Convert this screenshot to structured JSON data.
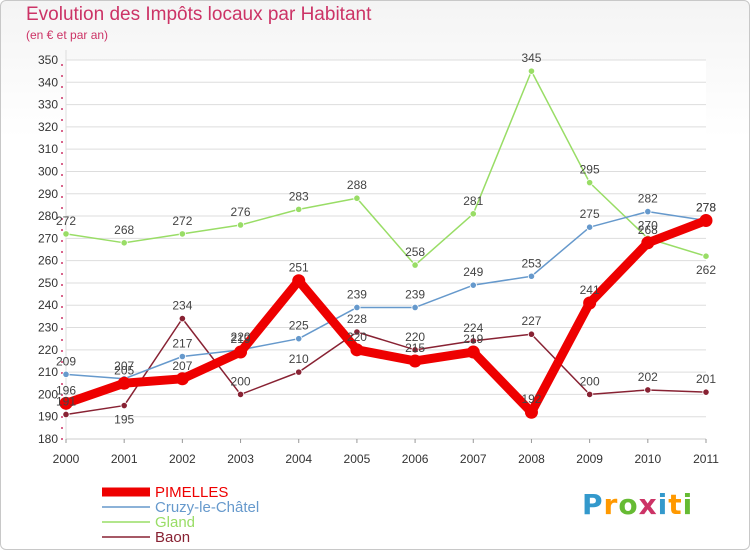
{
  "header": {
    "title": "Evolution des Impôts locaux par Habitant",
    "subtitle": "(en € et par an)"
  },
  "logo": {
    "text": "Proxiti"
  },
  "chart_data": {
    "type": "line",
    "title": "Evolution des Impôts locaux par Habitant",
    "subtitle": "(en € et par an)",
    "x": [
      "2000",
      "2001",
      "2002",
      "2003",
      "2004",
      "2005",
      "2006",
      "2007",
      "2008",
      "2009",
      "2010",
      "2011"
    ],
    "ylim": [
      180,
      350
    ],
    "yticks": [
      180,
      190,
      200,
      210,
      220,
      230,
      240,
      250,
      260,
      270,
      280,
      290,
      300,
      310,
      320,
      330,
      340,
      350
    ],
    "grid": true,
    "legend_position": "bottom-left",
    "series": [
      {
        "name": "PIMELLES",
        "color": "#ee0000",
        "values": [
          196,
          205,
          207,
          219,
          251,
          220,
          215,
          219,
          192,
          241,
          268,
          278
        ]
      },
      {
        "name": "Cruzy-le-Châtel",
        "color": "#6699cc",
        "values": [
          209,
          207,
          217,
          220,
          225,
          239,
          239,
          249,
          253,
          275,
          282,
          278
        ]
      },
      {
        "name": "Gland",
        "color": "#99dd66",
        "values": [
          272,
          268,
          272,
          276,
          283,
          288,
          258,
          281,
          345,
          295,
          270,
          262
        ]
      },
      {
        "name": "Baon",
        "color": "#882233",
        "values": [
          191,
          195,
          234,
          200,
          210,
          228,
          220,
          224,
          227,
          200,
          202,
          201
        ]
      }
    ]
  }
}
